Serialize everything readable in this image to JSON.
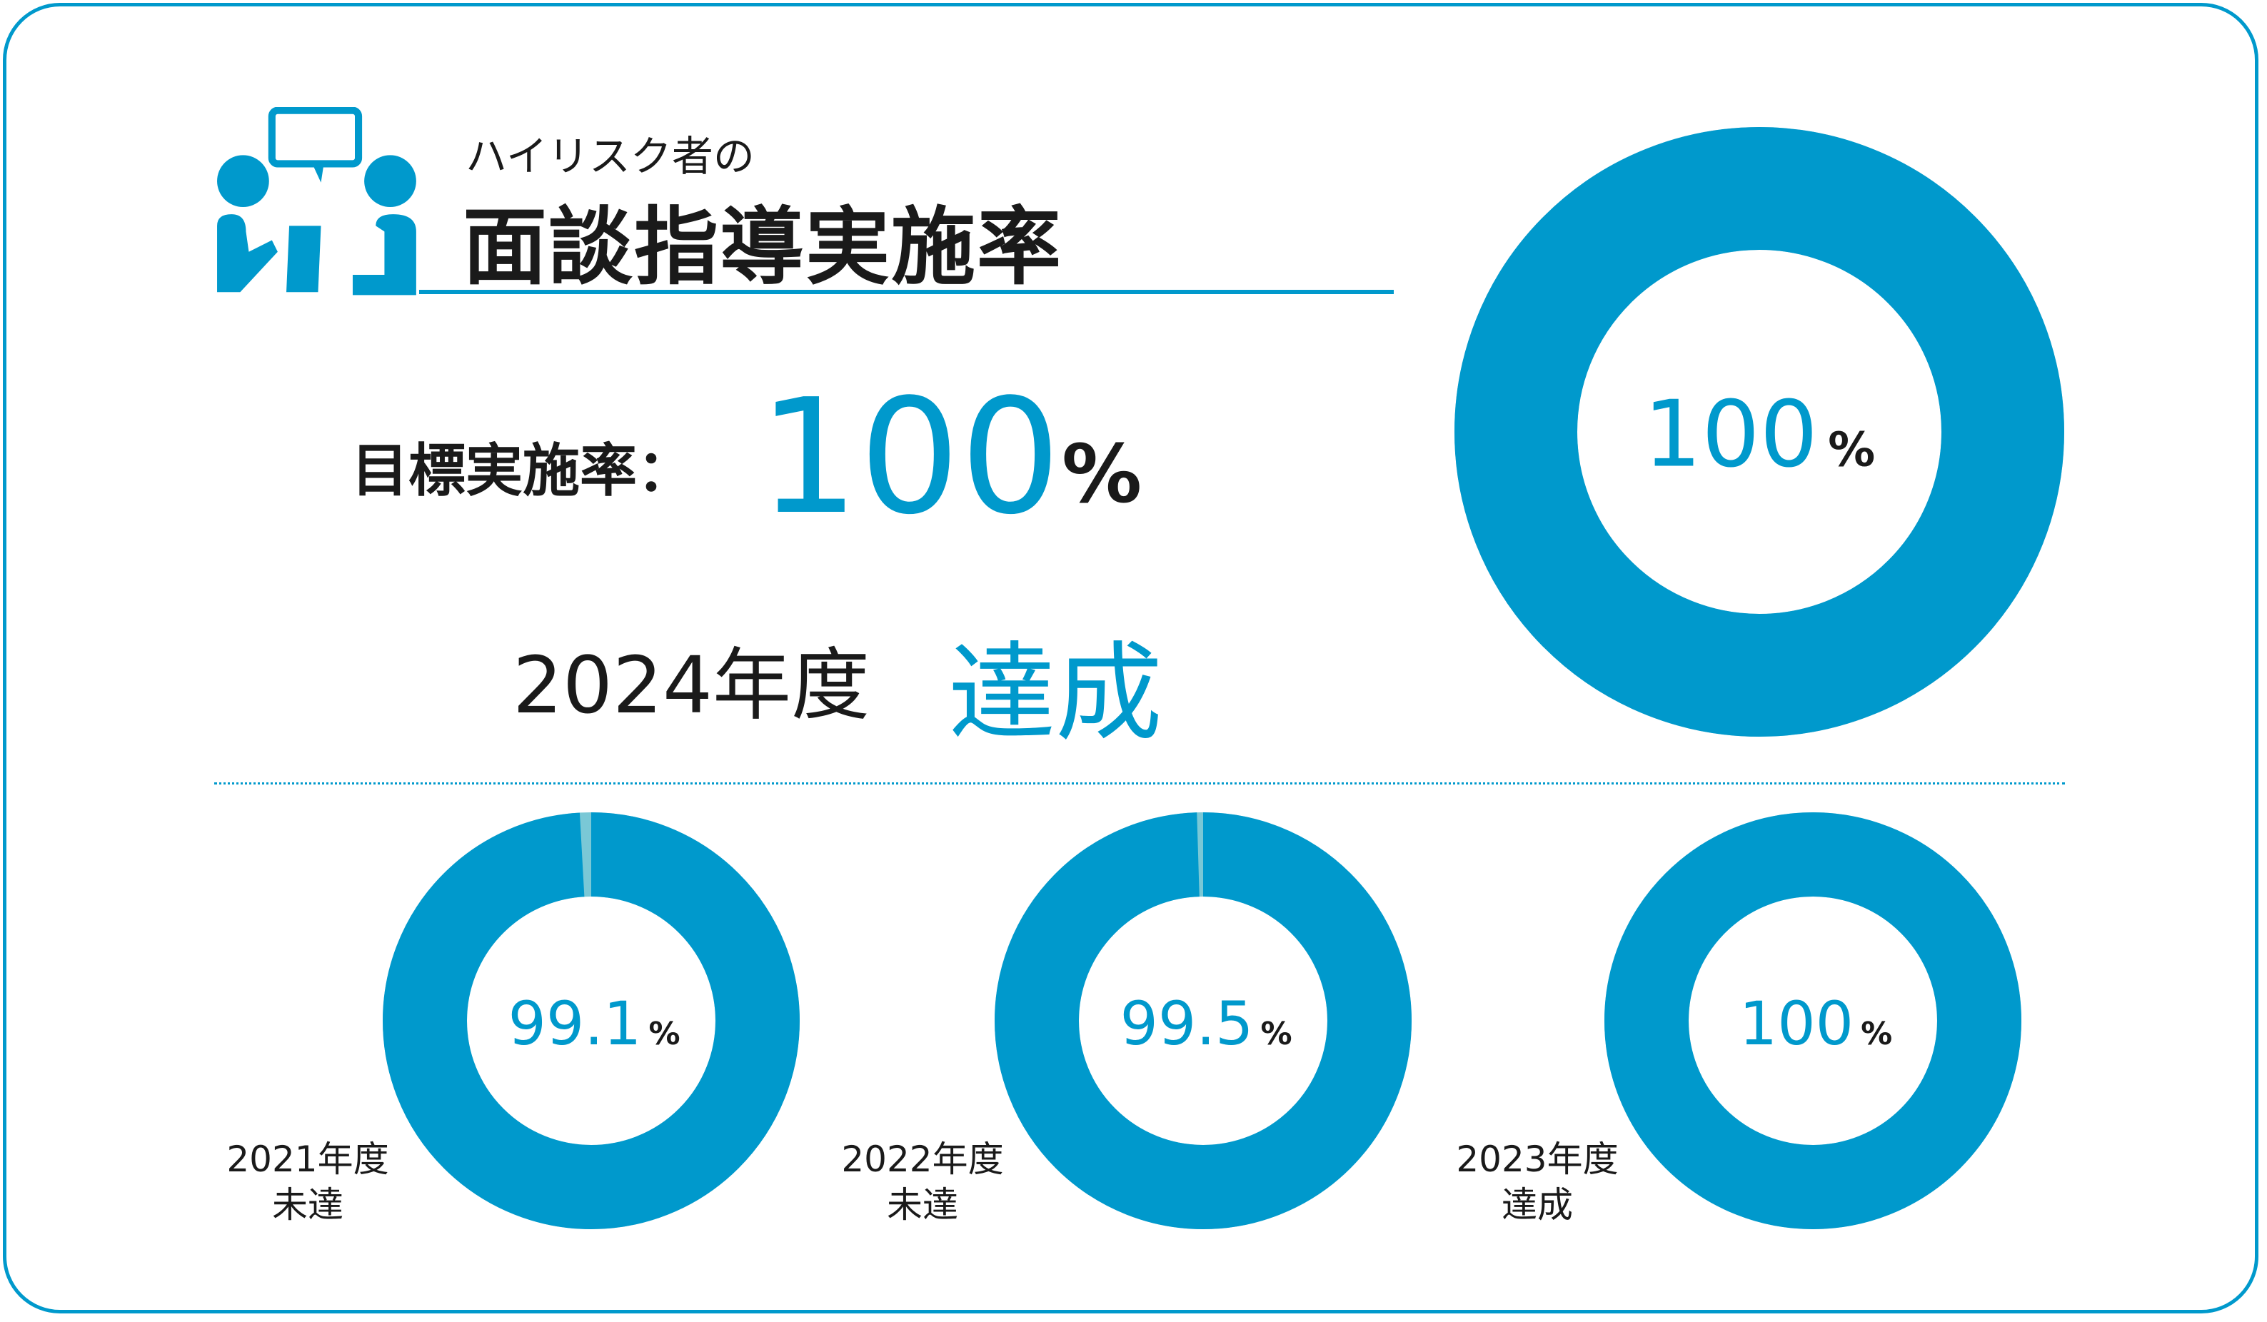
{
  "header": {
    "subtitle": "ハイリスク者の",
    "title": "面談指導実施率"
  },
  "target": {
    "label": "目標実施率：",
    "value": "100",
    "unit": "%"
  },
  "current": {
    "year": "2024年度",
    "status": "達成"
  },
  "colors": {
    "accent": "#0099cc",
    "remainder": "#7ac8d6"
  },
  "chart_data": [
    {
      "type": "pie",
      "title": "2024年度",
      "values": [
        100,
        0
      ],
      "label": "100",
      "unit": "%",
      "status": "達成"
    },
    {
      "type": "pie",
      "title": "2021年度",
      "values": [
        99.1,
        0.9
      ],
      "label": "99.1",
      "unit": "%",
      "status": "未達"
    },
    {
      "type": "pie",
      "title": "2022年度",
      "values": [
        99.5,
        0.5
      ],
      "label": "99.5",
      "unit": "%",
      "status": "未達"
    },
    {
      "type": "pie",
      "title": "2023年度",
      "values": [
        100,
        0
      ],
      "label": "100",
      "unit": "%",
      "status": "達成"
    }
  ]
}
